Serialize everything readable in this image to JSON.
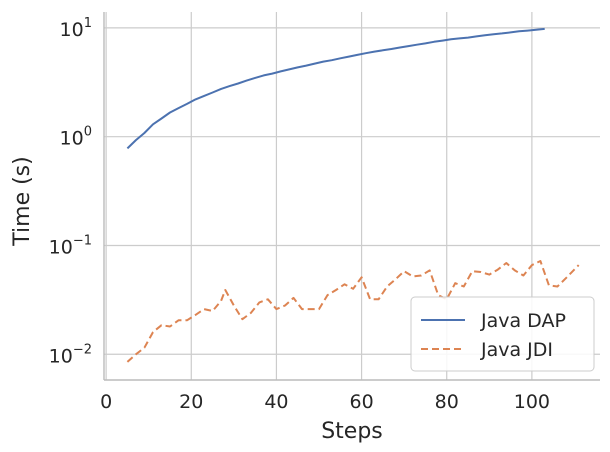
{
  "chart_data": {
    "type": "line",
    "xlabel": "Steps",
    "ylabel": "Time (s)",
    "xlim": [
      -0.5,
      116
    ],
    "ylim": [
      0.0058,
      14
    ],
    "yscale": "log",
    "grid": true,
    "legend_position": "bottom-right",
    "x_ticks": [
      0,
      20,
      40,
      60,
      80,
      100
    ],
    "x_tick_labels": [
      "0",
      "20",
      "40",
      "60",
      "80",
      "100"
    ],
    "y_ticks": [
      0.01,
      0.1,
      1,
      10
    ],
    "y_tick_labels": [
      {
        "base": "10",
        "exp": "−2"
      },
      {
        "base": "10",
        "exp": "−1"
      },
      {
        "base": "10",
        "exp": "0"
      },
      {
        "base": "10",
        "exp": "1"
      }
    ],
    "series": [
      {
        "name": "Java DAP",
        "color": "#4c72b0",
        "dash": "solid",
        "x": [
          5,
          7,
          9,
          11,
          13,
          15,
          17,
          19,
          21,
          23,
          25,
          27,
          29,
          31,
          33,
          35,
          37,
          39,
          41,
          43,
          45,
          47,
          49,
          51,
          53,
          55,
          57,
          59,
          61,
          63,
          65,
          67,
          69,
          71,
          73,
          75,
          77,
          79,
          81,
          83,
          85,
          87,
          89,
          91,
          93,
          95,
          97,
          99,
          101,
          103
        ],
        "y": [
          0.78,
          0.93,
          1.08,
          1.3,
          1.47,
          1.67,
          1.83,
          2.0,
          2.2,
          2.37,
          2.55,
          2.75,
          2.92,
          3.08,
          3.28,
          3.47,
          3.66,
          3.8,
          3.98,
          4.15,
          4.33,
          4.5,
          4.7,
          4.9,
          5.05,
          5.25,
          5.45,
          5.65,
          5.85,
          6.05,
          6.22,
          6.4,
          6.6,
          6.8,
          7.0,
          7.2,
          7.45,
          7.65,
          7.85,
          8.0,
          8.15,
          8.35,
          8.55,
          8.75,
          8.9,
          9.1,
          9.3,
          9.45,
          9.6,
          9.8
        ]
      },
      {
        "name": "Java JDI",
        "color": "#dd8452",
        "dash": "dashed",
        "x": [
          5,
          7,
          9,
          11,
          13,
          15,
          17,
          19,
          21,
          23,
          25,
          27,
          28,
          30,
          32,
          34,
          36,
          38,
          40,
          42,
          44,
          46,
          48,
          50,
          52,
          54,
          56,
          58,
          60,
          62,
          64,
          66,
          68,
          70,
          72,
          74,
          76,
          78,
          80,
          82,
          84,
          86,
          88,
          90,
          92,
          94,
          96,
          98,
          100,
          102,
          104,
          106,
          108,
          111
        ],
        "y": [
          0.0085,
          0.01,
          0.0115,
          0.016,
          0.0185,
          0.018,
          0.0205,
          0.0205,
          0.023,
          0.026,
          0.025,
          0.031,
          0.039,
          0.028,
          0.021,
          0.024,
          0.03,
          0.032,
          0.026,
          0.028,
          0.033,
          0.026,
          0.026,
          0.026,
          0.035,
          0.039,
          0.044,
          0.04,
          0.051,
          0.032,
          0.032,
          0.042,
          0.049,
          0.058,
          0.052,
          0.053,
          0.059,
          0.035,
          0.032,
          0.045,
          0.042,
          0.058,
          0.057,
          0.054,
          0.06,
          0.069,
          0.059,
          0.053,
          0.066,
          0.072,
          0.043,
          0.042,
          0.05,
          0.066
        ]
      }
    ]
  }
}
